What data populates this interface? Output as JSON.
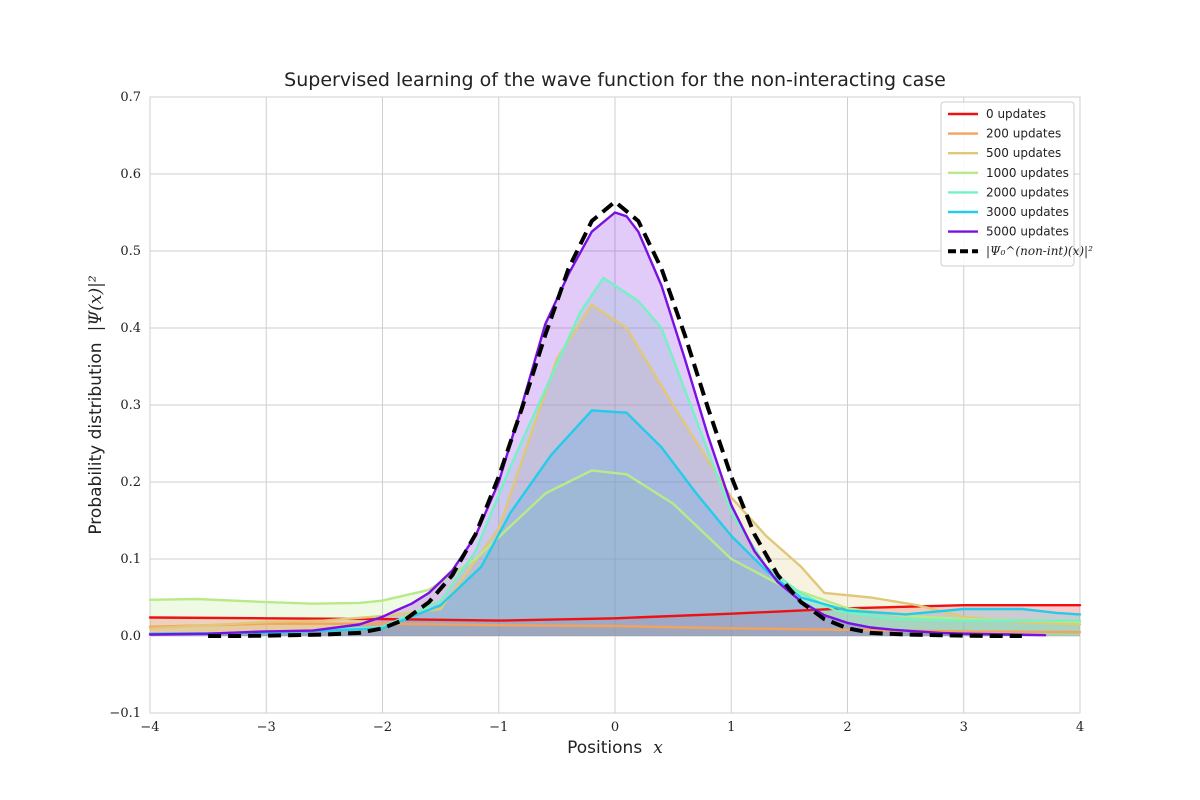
{
  "chart_data": {
    "type": "area",
    "title": "Supervised learning of the wave function for the non-interacting case",
    "xlabel": "Positions",
    "xlabel_math": "x",
    "ylabel": "Probability distribution",
    "ylabel_math": "|Ψ(x)|²",
    "xlim": [
      -4,
      4
    ],
    "ylim": [
      -0.1,
      0.7
    ],
    "xticks": [
      "−4",
      "−3",
      "−2",
      "−1",
      "0",
      "1",
      "2",
      "3",
      "4"
    ],
    "yticks": [
      "−0.1",
      "0.0",
      "0.1",
      "0.2",
      "0.3",
      "0.4",
      "0.5",
      "0.6",
      "0.7"
    ],
    "grid": true,
    "legend_position": "top-right",
    "series": [
      {
        "name": "0 updates",
        "color": "#ee1111",
        "filled": true,
        "x": [
          -4,
          -3,
          -2,
          -1,
          0,
          1,
          2,
          3,
          4
        ],
        "y": [
          0.024,
          0.023,
          0.022,
          0.02,
          0.023,
          0.029,
          0.036,
          0.04,
          0.04
        ]
      },
      {
        "name": "200 updates",
        "color": "#f5a25d",
        "filled": true,
        "x": [
          -4,
          -3,
          -2,
          -1,
          0,
          1,
          2,
          3,
          4
        ],
        "y": [
          0.012,
          0.016,
          0.016,
          0.014,
          0.013,
          0.01,
          0.008,
          0.006,
          0.005
        ]
      },
      {
        "name": "500 updates",
        "color": "#e0c878",
        "filled": true,
        "x": [
          -4,
          -3,
          -2.5,
          -2,
          -1.5,
          -1,
          -0.5,
          -0.2,
          0.1,
          0.5,
          1,
          1.3,
          1.6,
          1.8,
          2.2,
          2.6,
          3,
          3.5,
          4
        ],
        "y": [
          0.01,
          0.018,
          0.02,
          0.026,
          0.035,
          0.14,
          0.36,
          0.43,
          0.4,
          0.3,
          0.18,
          0.13,
          0.09,
          0.056,
          0.05,
          0.04,
          0.025,
          0.018,
          0.015
        ]
      },
      {
        "name": "1000 updates",
        "color": "#b8ea8a",
        "filled": true,
        "x": [
          -4,
          -3.6,
          -3,
          -2.6,
          -2.2,
          -2,
          -1.6,
          -1.2,
          -0.6,
          -0.2,
          0.1,
          0.5,
          1,
          1.4,
          2,
          2.5,
          3,
          3.5,
          4
        ],
        "y": [
          0.047,
          0.048,
          0.044,
          0.042,
          0.043,
          0.046,
          0.06,
          0.1,
          0.185,
          0.215,
          0.21,
          0.172,
          0.1,
          0.068,
          0.036,
          0.026,
          0.022,
          0.02,
          0.018
        ]
      },
      {
        "name": "2000 updates",
        "color": "#74f2c4",
        "filled": true,
        "x": [
          -4,
          -3,
          -2,
          -1.5,
          -1.2,
          -0.9,
          -0.6,
          -0.3,
          -0.1,
          0.2,
          0.4,
          0.7,
          1,
          1.3,
          1.6,
          1.9,
          2.4,
          3,
          3.5,
          4
        ],
        "y": [
          0.003,
          0.004,
          0.012,
          0.045,
          0.11,
          0.22,
          0.32,
          0.42,
          0.465,
          0.435,
          0.4,
          0.28,
          0.16,
          0.09,
          0.055,
          0.033,
          0.022,
          0.02,
          0.02,
          0.02
        ]
      },
      {
        "name": "3000 updates",
        "color": "#22ccea",
        "filled": true,
        "x": [
          -4,
          -3,
          -2,
          -1.5,
          -1.15,
          -0.9,
          -0.55,
          -0.2,
          0.1,
          0.4,
          0.7,
          1,
          1.3,
          1.6,
          2,
          2.5,
          3,
          3.5,
          3.8,
          4
        ],
        "y": [
          0.003,
          0.004,
          0.01,
          0.04,
          0.09,
          0.16,
          0.235,
          0.293,
          0.29,
          0.245,
          0.185,
          0.13,
          0.085,
          0.05,
          0.033,
          0.028,
          0.035,
          0.035,
          0.03,
          0.028
        ]
      },
      {
        "name": "5000 updates",
        "color": "#7a10e4",
        "filled": true,
        "x": [
          -4,
          -3.5,
          -3,
          -2.6,
          -2.2,
          -2,
          -1.9,
          -1.75,
          -1.6,
          -1.4,
          -1.2,
          -1,
          -0.8,
          -0.6,
          -0.4,
          -0.2,
          0,
          0.1,
          0.2,
          0.4,
          0.6,
          0.8,
          1,
          1.2,
          1.4,
          1.6,
          1.8,
          2,
          2.2,
          2.4,
          2.6,
          2.8,
          3,
          3.4,
          3.7
        ],
        "y": [
          0.002,
          0.003,
          0.006,
          0.007,
          0.015,
          0.025,
          0.032,
          0.042,
          0.056,
          0.085,
          0.13,
          0.2,
          0.3,
          0.405,
          0.47,
          0.525,
          0.55,
          0.545,
          0.525,
          0.455,
          0.36,
          0.26,
          0.17,
          0.11,
          0.07,
          0.045,
          0.027,
          0.017,
          0.011,
          0.008,
          0.006,
          0.004,
          0.003,
          0.002,
          0.001
        ]
      },
      {
        "name": "|Ψ₀^(non-int)(x)|²",
        "color": "#000000",
        "filled": false,
        "dashed": true,
        "x": [
          -3.5,
          -3.2,
          -2.8,
          -2.5,
          -2.2,
          -2,
          -1.8,
          -1.6,
          -1.4,
          -1.2,
          -1,
          -0.8,
          -0.6,
          -0.4,
          -0.2,
          0,
          0.2,
          0.4,
          0.6,
          0.8,
          1,
          1.2,
          1.4,
          1.6,
          1.8,
          2,
          2.2,
          2.5,
          2.8,
          3.2,
          3.5
        ],
        "y": [
          0.0,
          0.0,
          0.001,
          0.002,
          0.004,
          0.01,
          0.022,
          0.044,
          0.079,
          0.132,
          0.207,
          0.296,
          0.391,
          0.477,
          0.539,
          0.564,
          0.539,
          0.477,
          0.391,
          0.296,
          0.207,
          0.132,
          0.079,
          0.044,
          0.022,
          0.01,
          0.004,
          0.002,
          0.001,
          0.0,
          0.0
        ]
      }
    ]
  }
}
